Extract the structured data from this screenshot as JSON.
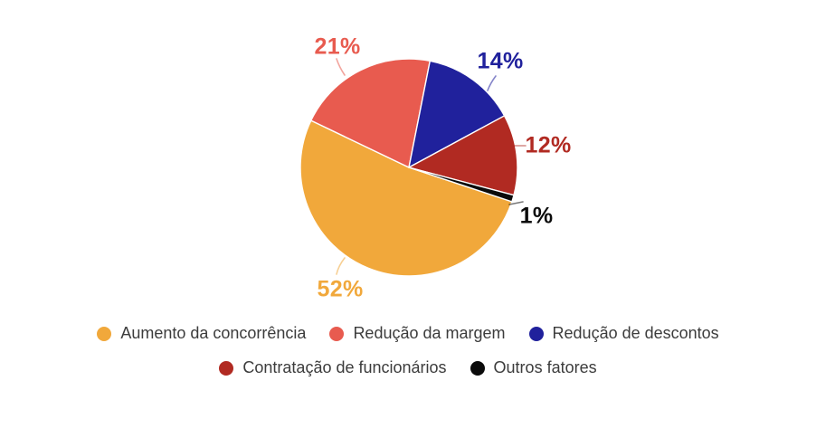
{
  "page": {
    "background": "#FFFFFF"
  },
  "chart_data": {
    "type": "pie",
    "total": 100,
    "start_angle_deg": 108.4,
    "legend_position": "bottom",
    "legend_text_color": "#3C3C3C",
    "slice_border_color": "#FFFFFF",
    "slices": [
      {
        "label": "Aumento da concorrência",
        "value": 52,
        "pct_label": "52%",
        "color": "#F1A83B"
      },
      {
        "label": "Redução da margem",
        "value": 21,
        "pct_label": "21%",
        "color": "#E85B4F"
      },
      {
        "label": "Redução de descontos",
        "value": 14,
        "pct_label": "14%",
        "color": "#20219C"
      },
      {
        "label": "Contratação de funcionários",
        "value": 12,
        "pct_label": "12%",
        "color": "#B12A22"
      },
      {
        "label": "Outros fatores",
        "value": 1,
        "pct_label": "1%",
        "color": "#0B0B0B"
      }
    ]
  }
}
